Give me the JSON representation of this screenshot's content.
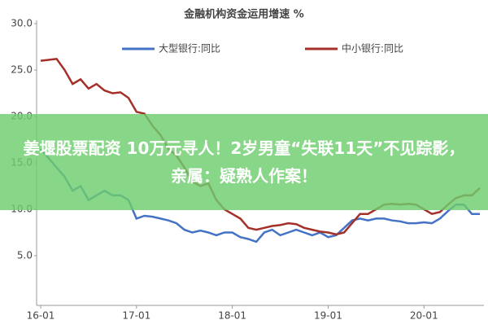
{
  "chart_data": {
    "type": "line",
    "title": "金融机构资金运用增速 %",
    "categories": [
      "16-01",
      null,
      null,
      null,
      null,
      null,
      null,
      null,
      null,
      null,
      null,
      null,
      "17-01",
      null,
      null,
      null,
      null,
      null,
      null,
      null,
      null,
      null,
      null,
      null,
      "18-01",
      null,
      null,
      null,
      null,
      null,
      null,
      null,
      null,
      null,
      null,
      null,
      "19-01",
      null,
      null,
      null,
      null,
      null,
      null,
      null,
      null,
      null,
      null,
      null,
      "20-01",
      null,
      null,
      null,
      null,
      null,
      null,
      null
    ],
    "series": [
      {
        "name": "大型银行:同比",
        "color": "#4472c4",
        "values": [
          16.5,
          15.5,
          14.5,
          13.5,
          12.0,
          12.5,
          11.0,
          11.5,
          12.0,
          11.5,
          11.5,
          11.0,
          9.0,
          9.3,
          9.2,
          9.0,
          8.8,
          8.5,
          7.8,
          7.5,
          7.7,
          7.5,
          7.2,
          7.5,
          7.5,
          7.0,
          6.8,
          6.5,
          7.5,
          7.8,
          7.2,
          7.5,
          7.8,
          7.5,
          7.2,
          7.5,
          7.0,
          7.2,
          8.0,
          8.8,
          9.0,
          8.8,
          9.0,
          9.0,
          8.8,
          8.7,
          8.5,
          8.5,
          8.6,
          8.5,
          9.0,
          9.8,
          10.5,
          10.5,
          9.5,
          9.5
        ]
      },
      {
        "name": "中小银行:同比",
        "color": "#a5302a",
        "values": [
          26.0,
          26.1,
          26.2,
          25.0,
          23.5,
          24.0,
          23.0,
          23.5,
          22.8,
          22.5,
          22.6,
          22.0,
          20.5,
          20.3,
          19.0,
          18.0,
          16.5,
          15.8,
          14.5,
          13.0,
          12.5,
          12.8,
          11.0,
          10.0,
          9.5,
          9.0,
          8.0,
          7.8,
          8.0,
          8.2,
          8.3,
          8.5,
          8.4,
          8.0,
          7.8,
          7.6,
          7.5,
          7.3,
          7.5,
          8.5,
          9.5,
          9.5,
          10.0,
          10.5,
          10.6,
          10.5,
          10.6,
          10.5,
          10.0,
          9.5,
          9.7,
          10.5,
          11.2,
          11.5,
          11.5,
          12.3
        ]
      }
    ],
    "ylim": [
      0,
      30
    ],
    "yticks": [
      {
        "value": 5,
        "label": "5.0"
      },
      {
        "value": 10,
        "label": "10.0"
      },
      {
        "value": 15,
        "label": "15.0"
      },
      {
        "value": 20,
        "label": "20.0"
      },
      {
        "value": 25,
        "label": "25.0"
      },
      {
        "value": 30,
        "label": "30.0"
      }
    ],
    "grid": false,
    "legend": "top",
    "annotation": "姜堰股票配资 10万元寻人！2岁男童“失联11天”不见踪影，亲属：疑熟人作案！"
  }
}
